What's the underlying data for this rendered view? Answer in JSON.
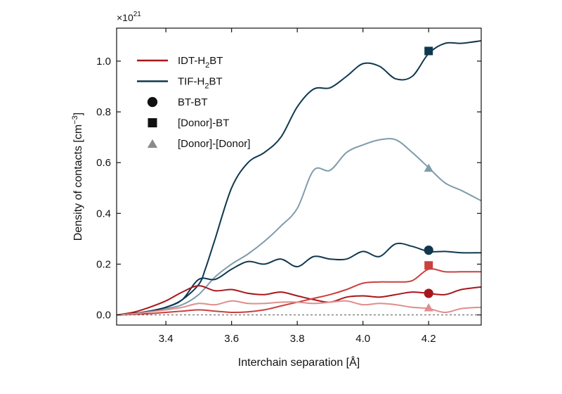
{
  "chart_data": {
    "type": "line",
    "title": "",
    "xlabel": "Interchain separation [Å]",
    "ylabel": "Density of contacts [cm",
    "ylabel_sup": "−3",
    "ylabel_end": "]",
    "y_multiplier": {
      "base": "×10",
      "exp": "21"
    },
    "xlim": [
      3.25,
      4.36
    ],
    "ylim": [
      -0.04,
      1.13
    ],
    "x_ticks": [
      "3.4",
      "3.6",
      "3.8",
      "4.0",
      "4.2"
    ],
    "y_ticks": [
      "0.0",
      "0.2",
      "0.4",
      "0.6",
      "0.8",
      "1.0"
    ],
    "baseline_y": 0,
    "grid": false,
    "legend_placement": "top-left",
    "series": [
      {
        "name": "TIF-H2BT [Donor]-BT",
        "color": "#10384f",
        "lw": 2,
        "x": [
          3.25,
          3.3,
          3.35,
          3.4,
          3.45,
          3.5,
          3.52,
          3.55,
          3.6,
          3.65,
          3.7,
          3.75,
          3.8,
          3.85,
          3.9,
          3.95,
          4.0,
          4.05,
          4.1,
          4.15,
          4.2,
          4.25,
          4.3,
          4.36
        ],
        "y": [
          0,
          0.005,
          0.015,
          0.03,
          0.06,
          0.12,
          0.18,
          0.3,
          0.5,
          0.6,
          0.64,
          0.7,
          0.82,
          0.89,
          0.895,
          0.94,
          0.99,
          0.98,
          0.93,
          0.94,
          1.03,
          1.07,
          1.07,
          1.08
        ]
      },
      {
        "name": "TIF-H2BT [Donor]-[Donor]",
        "color": "#7f9caa",
        "lw": 2,
        "x": [
          3.25,
          3.3,
          3.35,
          3.4,
          3.45,
          3.5,
          3.55,
          3.6,
          3.65,
          3.7,
          3.75,
          3.8,
          3.85,
          3.9,
          3.95,
          4.0,
          4.05,
          4.1,
          4.15,
          4.2,
          4.25,
          4.3,
          4.36
        ],
        "y": [
          0,
          0.005,
          0.015,
          0.025,
          0.04,
          0.08,
          0.15,
          0.2,
          0.24,
          0.29,
          0.35,
          0.42,
          0.57,
          0.57,
          0.64,
          0.67,
          0.69,
          0.69,
          0.64,
          0.58,
          0.52,
          0.49,
          0.45
        ]
      },
      {
        "name": "TIF-H2BT BT-BT",
        "color": "#10384f",
        "lw": 2,
        "x": [
          3.25,
          3.3,
          3.35,
          3.4,
          3.45,
          3.5,
          3.55,
          3.6,
          3.65,
          3.7,
          3.75,
          3.8,
          3.85,
          3.9,
          3.95,
          4.0,
          4.05,
          4.1,
          4.15,
          4.2,
          4.25,
          4.3,
          4.36
        ],
        "y": [
          0,
          0.005,
          0.015,
          0.03,
          0.06,
          0.14,
          0.14,
          0.18,
          0.21,
          0.2,
          0.22,
          0.19,
          0.23,
          0.22,
          0.22,
          0.25,
          0.23,
          0.28,
          0.27,
          0.25,
          0.25,
          0.245,
          0.245
        ]
      },
      {
        "name": "IDT-H2BT BT-BT",
        "color": "#a8161c",
        "lw": 2,
        "x": [
          3.25,
          3.3,
          3.35,
          3.4,
          3.45,
          3.5,
          3.55,
          3.6,
          3.65,
          3.7,
          3.75,
          3.8,
          3.85,
          3.9,
          3.95,
          4.0,
          4.05,
          4.1,
          4.15,
          4.2,
          4.25,
          4.3,
          4.36
        ],
        "y": [
          0,
          0.01,
          0.03,
          0.055,
          0.09,
          0.115,
          0.095,
          0.1,
          0.085,
          0.08,
          0.09,
          0.075,
          0.06,
          0.05,
          0.07,
          0.075,
          0.07,
          0.08,
          0.09,
          0.085,
          0.08,
          0.1,
          0.11
        ]
      },
      {
        "name": "IDT-H2BT [Donor]-BT",
        "color": "#c9403e",
        "lw": 2,
        "x": [
          3.25,
          3.3,
          3.35,
          3.4,
          3.45,
          3.5,
          3.55,
          3.6,
          3.65,
          3.7,
          3.75,
          3.8,
          3.85,
          3.9,
          3.95,
          4.0,
          4.05,
          4.1,
          4.15,
          4.2,
          4.25,
          4.3,
          4.36
        ],
        "y": [
          0,
          0.002,
          0.005,
          0.01,
          0.015,
          0.02,
          0.015,
          0.01,
          0.012,
          0.02,
          0.035,
          0.05,
          0.065,
          0.08,
          0.1,
          0.125,
          0.13,
          0.13,
          0.135,
          0.18,
          0.17,
          0.17,
          0.17
        ]
      },
      {
        "name": "IDT-H2BT [Donor]-[Donor]",
        "color": "#e08d8d",
        "lw": 2,
        "x": [
          3.25,
          3.3,
          3.35,
          3.4,
          3.45,
          3.5,
          3.55,
          3.6,
          3.65,
          3.7,
          3.75,
          3.8,
          3.85,
          3.9,
          3.95,
          4.0,
          4.05,
          4.1,
          4.15,
          4.2,
          4.25,
          4.3,
          4.36
        ],
        "y": [
          0,
          0.004,
          0.012,
          0.02,
          0.03,
          0.045,
          0.04,
          0.055,
          0.045,
          0.045,
          0.05,
          0.05,
          0.045,
          0.05,
          0.055,
          0.04,
          0.045,
          0.04,
          0.03,
          0.025,
          0.01,
          0.025,
          0.03
        ]
      }
    ],
    "markers": [
      {
        "shape": "square",
        "x": 4.2,
        "y": 1.04,
        "color": "#10384f"
      },
      {
        "shape": "triangle",
        "x": 4.2,
        "y": 0.58,
        "color": "#7f9caa"
      },
      {
        "shape": "circle",
        "x": 4.2,
        "y": 0.255,
        "color": "#10384f"
      },
      {
        "shape": "square",
        "x": 4.2,
        "y": 0.195,
        "color": "#c9403e"
      },
      {
        "shape": "circle",
        "x": 4.2,
        "y": 0.085,
        "color": "#a8161c"
      },
      {
        "shape": "triangle",
        "x": 4.2,
        "y": 0.03,
        "color": "#e08d8d"
      }
    ],
    "legend": [
      {
        "kind": "line",
        "label": "IDT-H",
        "sub": "2",
        "label_end": "BT",
        "color": "#a8161c"
      },
      {
        "kind": "line",
        "label": "TIF-H",
        "sub": "2",
        "label_end": "BT",
        "color": "#10384f"
      },
      {
        "kind": "circle",
        "label": "BT-BT",
        "sub": "",
        "label_end": "",
        "color": "#111111"
      },
      {
        "kind": "square",
        "label": "[Donor]-BT",
        "sub": "",
        "label_end": "",
        "color": "#111111"
      },
      {
        "kind": "triangle",
        "label": "[Donor]-[Donor]",
        "sub": "",
        "label_end": "",
        "color": "#8a8a8a"
      }
    ]
  }
}
